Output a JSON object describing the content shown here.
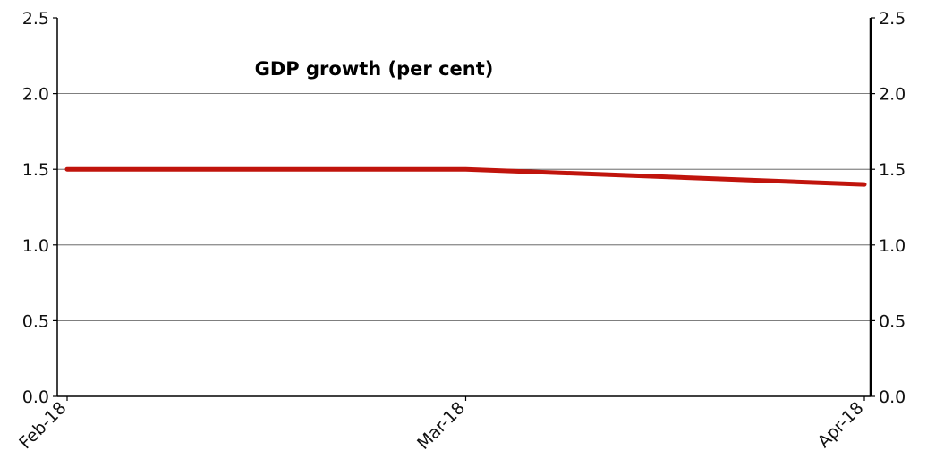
{
  "chart_data": {
    "type": "line",
    "title": "GDP growth (per cent)",
    "categories": [
      "Feb-18",
      "Mar-18",
      "Apr-18"
    ],
    "series": [
      {
        "values": [
          1.5,
          1.5,
          1.4
        ],
        "color": "#c0140c"
      }
    ],
    "y_ticks": [
      "0.0",
      "0.5",
      "1.0",
      "1.5",
      "2.0",
      "2.5"
    ],
    "ylim": [
      0,
      2.5
    ],
    "secondary_y_axis": true,
    "grid": "horizontal"
  }
}
